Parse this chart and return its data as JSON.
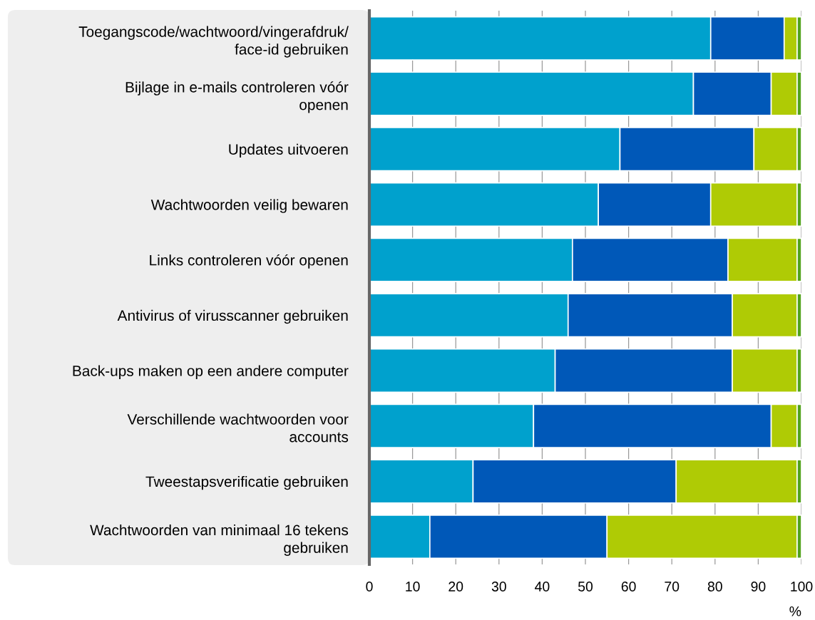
{
  "chart_data": {
    "type": "bar",
    "orientation": "horizontal",
    "stacked": true,
    "categories": [
      "Toegangscode/wachtwoord/vingerafdruk/\nface-id gebruiken",
      "Bijlage in e-mails controleren vóór\nopenen",
      "Updates uitvoeren",
      "Wachtwoorden veilig bewaren",
      "Links controleren vóór openen",
      "Antivirus of virusscanner gebruiken",
      "Back-ups maken op een andere computer",
      "Verschillende wachtwoorden voor\naccounts",
      "Tweestapsverificatie gebruiken",
      "Wachtwoorden van minimaal 16 tekens\ngebruiken"
    ],
    "series": [
      {
        "color": "#00a1cd",
        "values": [
          79,
          75,
          58,
          53,
          47,
          46,
          43,
          38,
          24,
          14
        ]
      },
      {
        "color": "#0058b8",
        "values": [
          17,
          18,
          31,
          26,
          36,
          38,
          41,
          55,
          47,
          41
        ]
      },
      {
        "color": "#afcb05",
        "values": [
          3,
          6,
          10,
          20,
          16,
          15,
          15,
          6,
          28,
          44
        ]
      },
      {
        "color": "#53a31d",
        "values": [
          1,
          1,
          1,
          1,
          1,
          1,
          1,
          1,
          1,
          1
        ]
      }
    ],
    "xlim": [
      0,
      100
    ],
    "xticks": [
      0,
      10,
      20,
      30,
      40,
      50,
      60,
      70,
      80,
      90,
      100
    ],
    "xlabel": "%",
    "grid": "x"
  }
}
